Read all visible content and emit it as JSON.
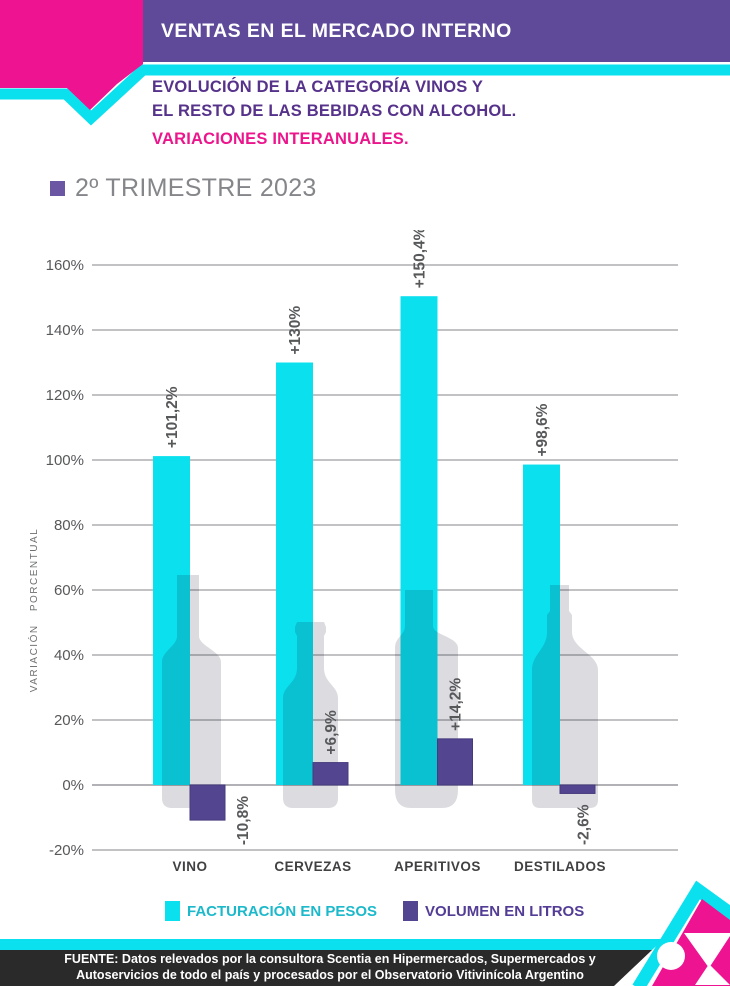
{
  "header": {
    "title": "VENTAS EN EL MERCADO INTERNO"
  },
  "subtitle": {
    "line1": "EVOLUCIÓN DE LA CATEGORÍA VINOS Y",
    "line2": "EL RESTO DE LAS BEBIDAS CON ALCOHOL.",
    "line3": "VARIACIONES INTERANUALES."
  },
  "period": {
    "label": "2º TRIMESTRE 2023"
  },
  "chart_data": {
    "type": "bar",
    "categories": [
      "VINO",
      "CERVEZAS",
      "APERITIVOS",
      "DESTILADOS"
    ],
    "series": [
      {
        "name": "FACTURACIÓN EN PESOS",
        "color": "#0be0ee",
        "values": [
          101.2,
          130,
          150.4,
          98.6
        ],
        "point_labels": [
          "+101,2%",
          "+130%",
          "+150,4%",
          "+98,6%"
        ]
      },
      {
        "name": "VOLUMEN EN LITROS",
        "color": "#53458f",
        "values": [
          -10.8,
          6.9,
          14.2,
          -2.6
        ],
        "point_labels": [
          "-10,8%",
          "+6,9%",
          "+14,2%",
          "-2,6%"
        ],
        "label_placement": [
          "right",
          "above",
          "above",
          "below"
        ],
        "negative_label_color": "#ec127e"
      }
    ],
    "ylabel": "VARIACIÓN PORCENTUAL",
    "ylim": [
      -20,
      160
    ],
    "yticks": [
      "160%",
      "140%",
      "120%",
      "100%",
      "80%",
      "60%",
      "40%",
      "20%",
      "0%",
      "-20%"
    ],
    "grid": true,
    "legend_position": "bottom",
    "decorations": [
      "wine-bottle",
      "beer-bottle",
      "aperitif-bottle",
      "spirits-bottle"
    ]
  },
  "legend": {
    "items": [
      {
        "label": "FACTURACIÓN EN PESOS",
        "color": "#0be0ee"
      },
      {
        "label": "VOLUMEN EN LITROS",
        "color": "#53458f"
      }
    ]
  },
  "footer": {
    "line1": "FUENTE: Datos relevados por la consultora Scentia en Hipermercados, Supermercados y",
    "line2": "Autoservicios de todo el país y procesados por el Observatorio Vitivinícola Argentino"
  },
  "colors": {
    "header_purple": "#5e4a99",
    "accent_pink": "#ee1390",
    "accent_cyan": "#0be0ee",
    "subtitle_purple": "#56328b",
    "subtitle_pink": "#ec158c",
    "bar_cyan": "#0be0ee",
    "bar_purple": "#53458f",
    "negative_label_pink": "#ec127e",
    "bottle_gray": "#dcdce0",
    "footer_black": "#2b2a2b",
    "text_gray": "#57585a"
  }
}
